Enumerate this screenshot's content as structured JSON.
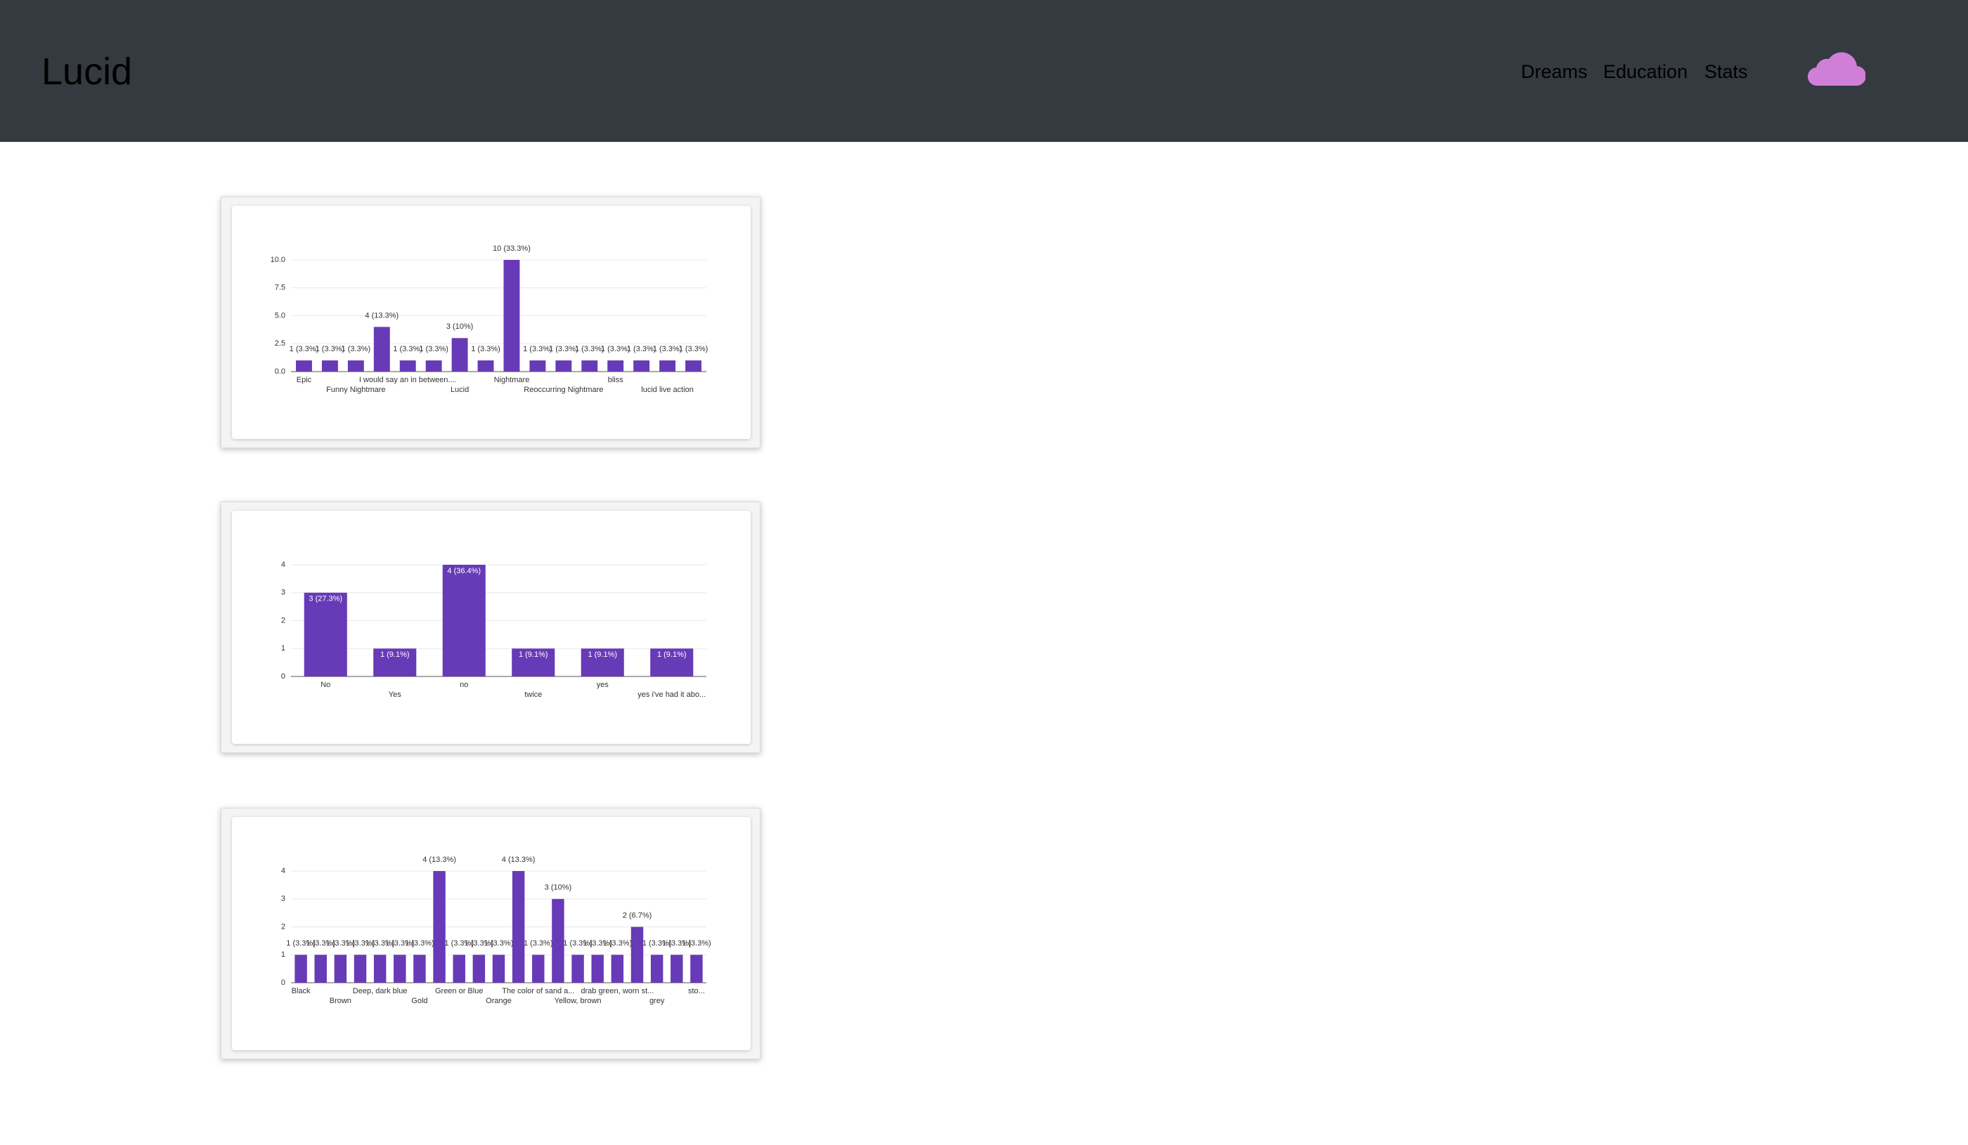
{
  "header": {
    "brand": "Lucid",
    "nav": [
      "Dreams",
      "Education",
      "Stats"
    ]
  },
  "chart_data": [
    {
      "type": "bar",
      "color": "#673ab7",
      "grid": true,
      "value_label_position": "outside",
      "categories": [
        "Epic",
        null,
        "Funny Nightmare",
        null,
        "I would say an in between....",
        null,
        "Lucid",
        null,
        "Nightmare",
        null,
        "Reoccurring Nightmare",
        null,
        "bliss",
        null,
        "lucid live action",
        null
      ],
      "values": [
        1,
        1,
        1,
        4,
        1,
        1,
        3,
        1,
        10,
        1,
        1,
        1,
        1,
        1,
        1,
        1
      ],
      "value_labels": [
        "1 (3.3%)",
        "1 (3.3%)",
        "1 (3.3%)",
        "4 (13.3%)",
        "1 (3.3%)",
        "1 (3.3%)",
        "3 (10%)",
        "1 (3.3%)",
        "10 (33.3%)",
        "1 (3.3%)",
        "1 (3.3%)",
        "1 (3.3%)",
        "1 (3.3%)",
        "1 (3.3%)",
        "1 (3.3%)",
        "1 (3.3%)"
      ],
      "ylim": [
        0,
        10
      ],
      "yticks": [
        {
          "value": 0,
          "label": "0.0"
        },
        {
          "value": 2.5,
          "label": "2.5"
        },
        {
          "value": 5,
          "label": "5.0"
        },
        {
          "value": 7.5,
          "label": "7.5"
        },
        {
          "value": 10,
          "label": "10.0"
        }
      ]
    },
    {
      "type": "bar",
      "color": "#673ab7",
      "grid": true,
      "value_label_position": "inside",
      "categories": [
        "No",
        "Yes",
        "no",
        "twice",
        "yes",
        "yes i've had it abo..."
      ],
      "values": [
        3,
        1,
        4,
        1,
        1,
        1
      ],
      "value_labels": [
        "3 (27.3%)",
        "1 (9.1%)",
        "4 (36.4%)",
        "1 (9.1%)",
        "1 (9.1%)",
        "1 (9.1%)"
      ],
      "ylim": [
        0,
        4
      ],
      "yticks": [
        0,
        1,
        2,
        3,
        4
      ]
    },
    {
      "type": "bar",
      "color": "#673ab7",
      "grid": true,
      "value_label_position": "outside",
      "categories": [
        "Black",
        null,
        "Brown",
        null,
        "Deep, dark blue",
        null,
        "Gold",
        null,
        "Green or Blue",
        null,
        "Orange",
        null,
        "The color of sand a...",
        null,
        "Yellow, brown",
        null,
        "drab green, worn st...",
        null,
        "grey",
        null,
        "sto..."
      ],
      "values": [
        1,
        1,
        1,
        1,
        1,
        1,
        1,
        4,
        1,
        1,
        1,
        4,
        1,
        3,
        1,
        1,
        1,
        2,
        1,
        1,
        1
      ],
      "value_labels": [
        "1 (3.3%)",
        "1 (3.3%)",
        "1 (3.3%)",
        "1 (3.3%)",
        "1 (3.3%)",
        "1 (3.3%)",
        "1 (3.3%)",
        "4 (13.3%)",
        "1 (3.3%)",
        "1 (3.3%)",
        "1 (3.3%)",
        "4 (13.3%)",
        "1 (3.3%)",
        "3 (10%)",
        "1 (3.3%)",
        "1 (3.3%)",
        "1 (3.3%)",
        "2 (6.7%)",
        "1 (3.3%)",
        "1 (3.3%)",
        "1 (3.3%)"
      ],
      "ylim": [
        0,
        4
      ],
      "yticks": [
        0,
        1,
        2,
        3,
        4
      ]
    }
  ]
}
